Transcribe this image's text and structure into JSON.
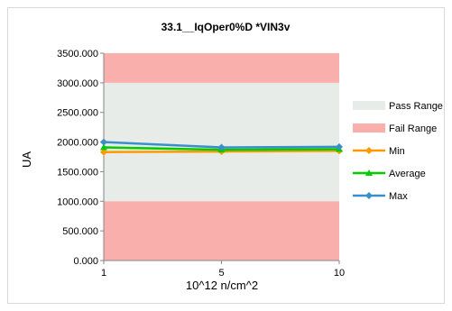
{
  "chart_data": {
    "type": "line",
    "title": "33.1__IqOper0%D  *VIN3v",
    "xlabel": "10^12 n/cm^2",
    "ylabel": "UA",
    "categories": [
      "1",
      "5",
      "10"
    ],
    "ylim": [
      0,
      3500
    ],
    "yticks": [
      "0.000",
      "500.000",
      "1000.000",
      "1500.000",
      "2000.000",
      "2500.000",
      "3000.000",
      "3500.000"
    ],
    "bands": [
      {
        "name": "Pass Range",
        "from": 1000,
        "to": 3000,
        "color": "#e8ece9"
      },
      {
        "name": "Fail Range",
        "from": 0,
        "to": 1000,
        "color": "#f9b0ac"
      },
      {
        "name": "Fail Range",
        "from": 3000,
        "to": 3500,
        "color": "#f9b0ac"
      }
    ],
    "series": [
      {
        "name": "Min",
        "values": [
          1830,
          1840,
          1850
        ],
        "color": "#ff9900"
      },
      {
        "name": "Average",
        "values": [
          1910,
          1870,
          1880
        ],
        "color": "#00cc00"
      },
      {
        "name": "Max",
        "values": [
          2000,
          1910,
          1920
        ],
        "color": "#3b8ec9"
      }
    ],
    "legend": [
      {
        "label": "Pass Range",
        "kind": "band",
        "color": "#e8ece9"
      },
      {
        "label": "Fail Range",
        "kind": "band",
        "color": "#f9b0ac"
      },
      {
        "label": "Min",
        "kind": "line",
        "color": "#ff9900"
      },
      {
        "label": "Average",
        "kind": "line",
        "color": "#00cc00"
      },
      {
        "label": "Max",
        "kind": "line",
        "color": "#3b8ec9"
      }
    ],
    "legend_position": "right",
    "grid": false
  }
}
